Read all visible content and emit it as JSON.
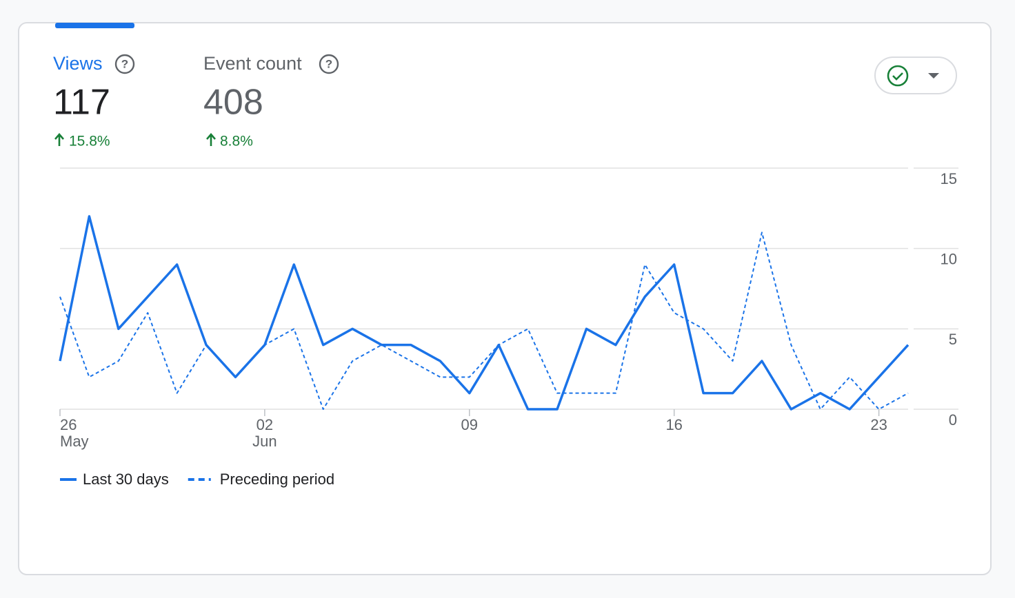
{
  "metrics": [
    {
      "label": "Views",
      "value": 117,
      "change": "15.8%"
    },
    {
      "label": "Event count",
      "value": 408,
      "change": "8.8%"
    }
  ],
  "chart_data": {
    "type": "line",
    "categories": [
      "26",
      null,
      null,
      null,
      null,
      null,
      null,
      "02",
      null,
      null,
      null,
      null,
      null,
      null,
      "09",
      null,
      null,
      null,
      null,
      null,
      null,
      "16",
      null,
      null,
      null,
      null,
      null,
      null,
      "23",
      null
    ],
    "category_sublabels": [
      "May",
      null,
      null,
      null,
      null,
      null,
      null,
      "Jun",
      null,
      null,
      null,
      null,
      null,
      null,
      null,
      null,
      null,
      null,
      null,
      null,
      null,
      null,
      null,
      null,
      null,
      null,
      null,
      null,
      null,
      null
    ],
    "series": [
      {
        "name": "Last 30 days",
        "color": "#1a73e8",
        "style": "solid",
        "values": [
          3,
          12,
          5,
          7,
          9,
          4,
          2,
          4,
          9,
          4,
          5,
          4,
          4,
          3,
          1,
          4,
          0,
          0,
          5,
          4,
          7,
          9,
          1,
          1,
          3,
          0,
          1,
          0,
          2,
          4
        ]
      },
      {
        "name": "Preceding period",
        "color": "#1a73e8",
        "style": "dashed",
        "values": [
          7,
          2,
          3,
          6,
          1,
          4,
          2,
          4,
          5,
          0,
          3,
          4,
          3,
          2,
          2,
          4,
          5,
          1,
          1,
          1,
          9,
          6,
          5,
          3,
          11,
          4,
          0,
          2,
          0,
          1
        ]
      }
    ],
    "ylim": [
      0,
      15
    ],
    "yticks": [
      0,
      5,
      10,
      15
    ],
    "grid": true
  }
}
